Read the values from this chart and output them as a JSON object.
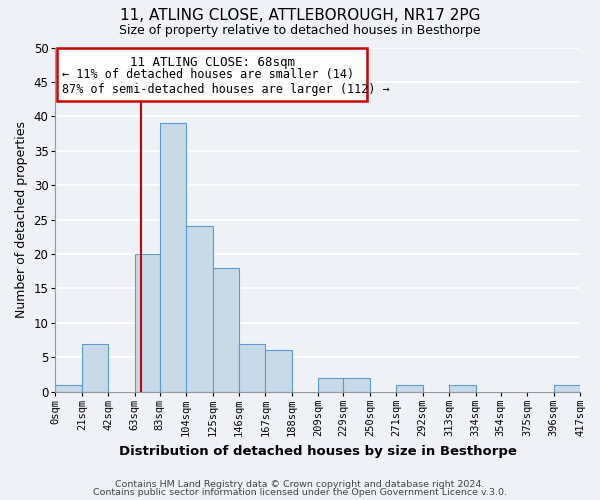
{
  "title1": "11, ATLING CLOSE, ATTLEBOROUGH, NR17 2PG",
  "title2": "Size of property relative to detached houses in Besthorpe",
  "xlabel": "Distribution of detached houses by size in Besthorpe",
  "ylabel": "Number of detached properties",
  "footer1": "Contains HM Land Registry data © Crown copyright and database right 2024.",
  "footer2": "Contains public sector information licensed under the Open Government Licence v.3.0.",
  "bin_edges": [
    0,
    21,
    42,
    63,
    83,
    104,
    125,
    146,
    167,
    188,
    209,
    229,
    250,
    271,
    292,
    313,
    334,
    354,
    375,
    396,
    417
  ],
  "counts": [
    1,
    7,
    0,
    20,
    39,
    24,
    18,
    7,
    6,
    0,
    2,
    2,
    0,
    1,
    0,
    1,
    0,
    0,
    0,
    1
  ],
  "bar_color": "#c8d9e8",
  "bar_edge_color": "#5b9bd5",
  "property_size": 68,
  "vline_color": "#cc0000",
  "annotation_box_edge_color": "#cc0000",
  "annotation_text_line1": "11 ATLING CLOSE: 68sqm",
  "annotation_text_line2": "← 11% of detached houses are smaller (14)",
  "annotation_text_line3": "87% of semi-detached houses are larger (112) →",
  "ylim": [
    0,
    50
  ],
  "xlim": [
    0,
    417
  ],
  "tick_labels": [
    "0sqm",
    "21sqm",
    "42sqm",
    "63sqm",
    "83sqm",
    "104sqm",
    "125sqm",
    "146sqm",
    "167sqm",
    "188sqm",
    "209sqm",
    "229sqm",
    "250sqm",
    "271sqm",
    "292sqm",
    "313sqm",
    "334sqm",
    "354sqm",
    "375sqm",
    "396sqm",
    "417sqm"
  ],
  "tick_positions": [
    0,
    21,
    42,
    63,
    83,
    104,
    125,
    146,
    167,
    188,
    209,
    229,
    250,
    271,
    292,
    313,
    334,
    354,
    375,
    396,
    417
  ],
  "yticks": [
    0,
    5,
    10,
    15,
    20,
    25,
    30,
    35,
    40,
    45,
    50
  ],
  "background_color": "#eef2f7",
  "grid_color": "#ffffff"
}
